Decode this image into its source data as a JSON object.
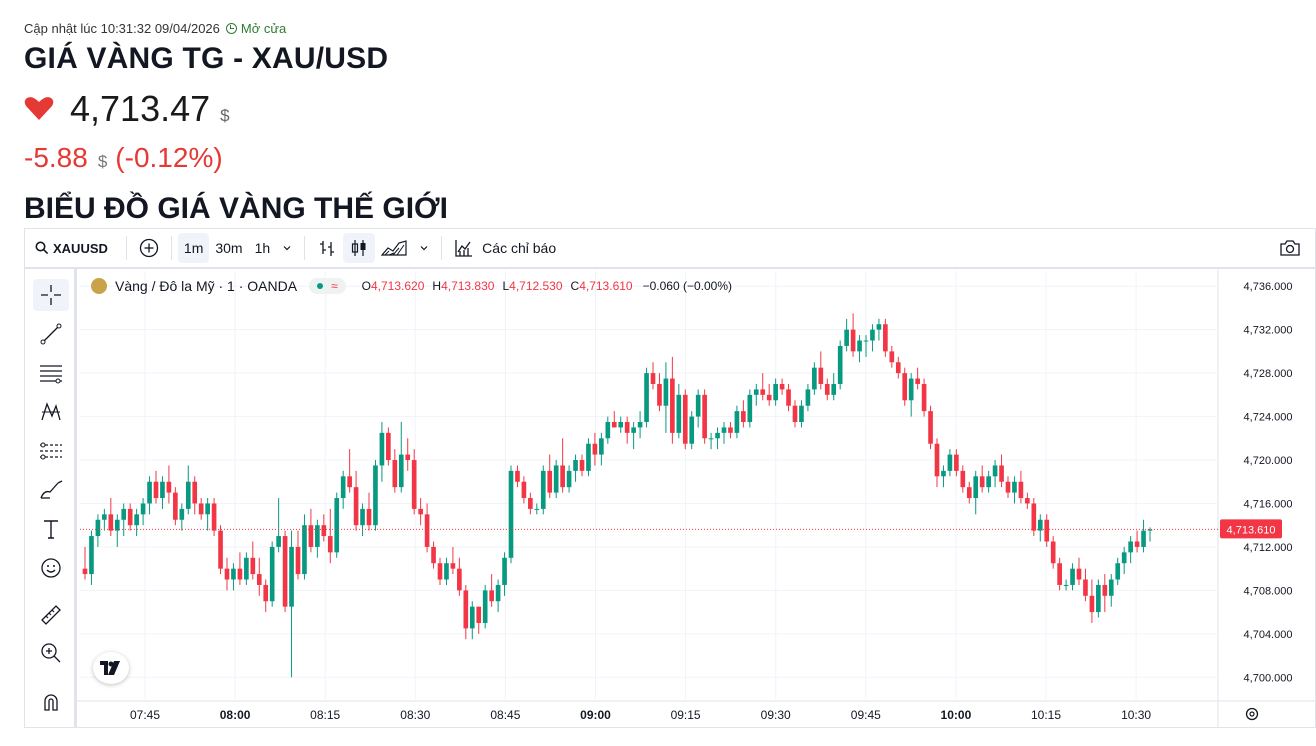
{
  "header": {
    "update_label": "Cập nhật lúc 10:31:32 09/04/2026",
    "market_status": "Mở cửa",
    "title": "GIÁ VÀNG TG - XAU/USD",
    "price": "4,713.47",
    "price_unit": "$",
    "change": "-5.88",
    "change_unit": "$",
    "change_pct": "(-0.12%)",
    "section_title": "BIỂU ĐỒ GIÁ VÀNG THẾ GIỚI",
    "down_color": "#e53935"
  },
  "toolbar": {
    "symbol": "XAUUSD",
    "intervals": [
      "1m",
      "30m",
      "1h"
    ],
    "active_interval": "1m",
    "indicators_label": "Các chỉ báo"
  },
  "legend": {
    "instrument": "Vàng / Đô la Mỹ · 1 · OANDA",
    "o_label": "O",
    "o_value": "4,713.620",
    "h_label": "H",
    "h_value": "4,713.830",
    "l_label": "L",
    "l_value": "4,712.530",
    "c_label": "C",
    "c_value": "4,713.610",
    "change": "−0.060 (−0.00%)"
  },
  "left_tools": [
    "crosshair-icon",
    "trend-line-icon",
    "fib-lines-icon",
    "pattern-icon",
    "prediction-icon",
    "brush-icon",
    "text-icon",
    "emoji-icon",
    "ruler-icon",
    "zoom-icon",
    "magnet-icon"
  ],
  "chart_data": {
    "type": "candlestick",
    "up_color": "#089981",
    "down_color": "#f23645",
    "ylim": [
      4698,
      4737.4
    ],
    "y_ticks": [
      "4,736.000",
      "4,732.000",
      "4,728.000",
      "4,724.000",
      "4,720.000",
      "4,716.000",
      "4,712.000",
      "4,708.000",
      "4,704.000",
      "4,700.000"
    ],
    "y_tick_values": [
      4736,
      4732,
      4728,
      4724,
      4720,
      4716,
      4712,
      4708,
      4704,
      4700
    ],
    "x_ticks": [
      "07:45",
      "08:00",
      "08:15",
      "08:30",
      "08:45",
      "09:00",
      "09:15",
      "09:30",
      "09:45",
      "10:00",
      "10:15",
      "10:30"
    ],
    "x_tick_bold": [
      false,
      true,
      false,
      false,
      false,
      true,
      false,
      false,
      false,
      true,
      false,
      false
    ],
    "last_price": "4,713.610",
    "last_price_value": 4713.61,
    "candles": [
      [
        4710.0,
        4712.0,
        4709.0,
        4709.5
      ],
      [
        4709.5,
        4713.5,
        4708.5,
        4713.0
      ],
      [
        4713.0,
        4715.0,
        4712.0,
        4714.5
      ],
      [
        4714.5,
        4715.5,
        4713.5,
        4715.0
      ],
      [
        4715.0,
        4716.5,
        4713.0,
        4713.5
      ],
      [
        4713.5,
        4715.0,
        4712.0,
        4714.5
      ],
      [
        4714.5,
        4716.0,
        4713.0,
        4715.5
      ],
      [
        4715.5,
        4716.0,
        4713.5,
        4714.0
      ],
      [
        4714.0,
        4715.5,
        4713.0,
        4715.0
      ],
      [
        4715.0,
        4716.5,
        4714.0,
        4716.0
      ],
      [
        4716.0,
        4718.5,
        4715.0,
        4718.0
      ],
      [
        4718.0,
        4719.0,
        4716.0,
        4716.5
      ],
      [
        4716.5,
        4718.5,
        4715.5,
        4718.0
      ],
      [
        4718.0,
        4719.5,
        4716.0,
        4717.0
      ],
      [
        4717.0,
        4717.5,
        4714.0,
        4714.5
      ],
      [
        4714.5,
        4716.0,
        4713.5,
        4715.5
      ],
      [
        4715.5,
        4719.5,
        4715.0,
        4718.0
      ],
      [
        4718.0,
        4718.5,
        4715.0,
        4716.0
      ],
      [
        4716.0,
        4716.5,
        4714.5,
        4715.0
      ],
      [
        4715.0,
        4716.5,
        4713.5,
        4716.0
      ],
      [
        4716.0,
        4716.5,
        4713.0,
        4713.5
      ],
      [
        4713.5,
        4714.0,
        4709.5,
        4710.0
      ],
      [
        4710.0,
        4711.0,
        4708.0,
        4709.0
      ],
      [
        4709.0,
        4710.5,
        4708.0,
        4710.0
      ],
      [
        4710.0,
        4711.5,
        4708.5,
        4709.0
      ],
      [
        4709.0,
        4711.5,
        4708.5,
        4711.0
      ],
      [
        4711.0,
        4712.5,
        4709.0,
        4709.5
      ],
      [
        4709.5,
        4711.0,
        4707.5,
        4708.5
      ],
      [
        4708.5,
        4709.0,
        4706.0,
        4707.0
      ],
      [
        4707.0,
        4712.5,
        4706.5,
        4712.0
      ],
      [
        4712.0,
        4716.5,
        4711.5,
        4713.0
      ],
      [
        4713.0,
        4713.5,
        4706.0,
        4706.5
      ],
      [
        4706.5,
        4713.5,
        4700.0,
        4712.0
      ],
      [
        4712.0,
        4713.5,
        4709.0,
        4709.5
      ],
      [
        4709.5,
        4715.0,
        4709.0,
        4714.0
      ],
      [
        4714.0,
        4715.5,
        4711.5,
        4712.0
      ],
      [
        4712.0,
        4714.5,
        4711.0,
        4714.0
      ],
      [
        4714.0,
        4715.0,
        4712.5,
        4713.0
      ],
      [
        4713.0,
        4715.5,
        4710.5,
        4711.5
      ],
      [
        4711.5,
        4717.0,
        4711.0,
        4716.5
      ],
      [
        4716.5,
        4719.0,
        4715.5,
        4718.5
      ],
      [
        4718.5,
        4721.0,
        4717.0,
        4717.5
      ],
      [
        4717.5,
        4719.0,
        4713.5,
        4714.0
      ],
      [
        4714.0,
        4716.0,
        4713.0,
        4715.5
      ],
      [
        4715.5,
        4717.0,
        4713.5,
        4714.0
      ],
      [
        4714.0,
        4720.0,
        4713.5,
        4719.5
      ],
      [
        4719.5,
        4723.5,
        4718.0,
        4722.5
      ],
      [
        4722.5,
        4723.0,
        4719.5,
        4720.0
      ],
      [
        4720.0,
        4721.0,
        4717.0,
        4717.5
      ],
      [
        4717.5,
        4723.5,
        4717.0,
        4720.5
      ],
      [
        4720.5,
        4722.0,
        4719.0,
        4720.0
      ],
      [
        4720.0,
        4721.0,
        4715.0,
        4715.5
      ],
      [
        4715.5,
        4716.5,
        4714.0,
        4715.0
      ],
      [
        4715.0,
        4716.0,
        4711.5,
        4712.0
      ],
      [
        4712.0,
        4712.5,
        4710.0,
        4710.5
      ],
      [
        4710.5,
        4711.0,
        4708.5,
        4709.0
      ],
      [
        4709.0,
        4711.0,
        4708.5,
        4710.5
      ],
      [
        4710.5,
        4712.0,
        4709.5,
        4710.0
      ],
      [
        4710.0,
        4711.0,
        4707.5,
        4708.0
      ],
      [
        4708.0,
        4708.5,
        4703.5,
        4704.5
      ],
      [
        4704.5,
        4707.0,
        4703.5,
        4706.5
      ],
      [
        4706.5,
        4706.5,
        4704.0,
        4705.0
      ],
      [
        4705.0,
        4708.5,
        4704.5,
        4708.0
      ],
      [
        4708.0,
        4709.5,
        4706.5,
        4707.0
      ],
      [
        4707.0,
        4709.0,
        4706.0,
        4708.5
      ],
      [
        4708.5,
        4711.5,
        4707.5,
        4711.0
      ],
      [
        4711.0,
        4719.5,
        4710.5,
        4719.0
      ],
      [
        4719.0,
        4719.5,
        4717.5,
        4718.0
      ],
      [
        4718.0,
        4718.5,
        4716.0,
        4716.5
      ],
      [
        4716.5,
        4717.0,
        4715.0,
        4715.5
      ],
      [
        4715.5,
        4716.0,
        4715.0,
        4715.5
      ],
      [
        4715.5,
        4719.5,
        4715.0,
        4719.0
      ],
      [
        4719.0,
        4720.5,
        4716.5,
        4717.0
      ],
      [
        4717.0,
        4720.0,
        4716.5,
        4719.5
      ],
      [
        4719.5,
        4722.0,
        4717.0,
        4717.5
      ],
      [
        4717.5,
        4719.5,
        4717.0,
        4719.0
      ],
      [
        4719.0,
        4720.5,
        4718.0,
        4720.0
      ],
      [
        4720.0,
        4720.5,
        4718.5,
        4719.0
      ],
      [
        4719.0,
        4722.0,
        4718.5,
        4721.5
      ],
      [
        4721.5,
        4722.5,
        4719.5,
        4720.5
      ],
      [
        4720.5,
        4722.5,
        4719.5,
        4722.0
      ],
      [
        4722.0,
        4724.0,
        4721.5,
        4723.5
      ],
      [
        4723.5,
        4724.5,
        4723.0,
        4723.0
      ],
      [
        4723.0,
        4724.0,
        4722.5,
        4723.5
      ],
      [
        4723.5,
        4724.0,
        4721.5,
        4722.5
      ],
      [
        4722.5,
        4723.5,
        4721.0,
        4723.0
      ],
      [
        4723.0,
        4724.5,
        4722.0,
        4723.5
      ],
      [
        4723.5,
        4728.5,
        4723.0,
        4728.0
      ],
      [
        4728.0,
        4729.0,
        4726.5,
        4727.0
      ],
      [
        4727.0,
        4728.0,
        4724.5,
        4725.0
      ],
      [
        4725.0,
        4729.0,
        4722.5,
        4727.5
      ],
      [
        4727.5,
        4729.5,
        4721.5,
        4722.5
      ],
      [
        4722.5,
        4727.0,
        4722.0,
        4726.0
      ],
      [
        4726.0,
        4726.5,
        4721.0,
        4721.5
      ],
      [
        4721.5,
        4724.5,
        4721.0,
        4724.0
      ],
      [
        4724.0,
        4726.5,
        4723.0,
        4726.0
      ],
      [
        4726.0,
        4726.5,
        4721.5,
        4722.0
      ],
      [
        4722.0,
        4722.5,
        4721.0,
        4722.0
      ],
      [
        4722.0,
        4723.0,
        4721.0,
        4722.5
      ],
      [
        4722.5,
        4723.5,
        4721.5,
        4723.0
      ],
      [
        4723.0,
        4723.5,
        4722.0,
        4722.5
      ],
      [
        4722.5,
        4725.0,
        4722.0,
        4724.5
      ],
      [
        4724.5,
        4725.5,
        4723.0,
        4723.5
      ],
      [
        4723.5,
        4726.5,
        4723.0,
        4726.0
      ],
      [
        4726.0,
        4727.0,
        4725.0,
        4726.5
      ],
      [
        4726.5,
        4728.0,
        4725.5,
        4726.0
      ],
      [
        4726.0,
        4727.0,
        4725.0,
        4725.5
      ],
      [
        4725.5,
        4727.5,
        4725.0,
        4727.0
      ],
      [
        4727.0,
        4727.5,
        4726.0,
        4726.5
      ],
      [
        4726.5,
        4727.0,
        4724.5,
        4725.0
      ],
      [
        4725.0,
        4725.5,
        4723.0,
        4723.5
      ],
      [
        4723.5,
        4725.5,
        4723.0,
        4725.0
      ],
      [
        4725.0,
        4727.0,
        4724.5,
        4726.5
      ],
      [
        4726.5,
        4729.0,
        4726.0,
        4728.5
      ],
      [
        4728.5,
        4730.0,
        4726.5,
        4727.0
      ],
      [
        4727.0,
        4727.5,
        4725.5,
        4726.0
      ],
      [
        4726.0,
        4728.0,
        4725.5,
        4727.0
      ],
      [
        4727.0,
        4731.0,
        4726.5,
        4730.5
      ],
      [
        4730.5,
        4733.0,
        4730.0,
        4732.0
      ],
      [
        4732.0,
        4733.5,
        4729.5,
        4730.0
      ],
      [
        4730.0,
        4731.5,
        4729.0,
        4731.0
      ],
      [
        4731.0,
        4731.5,
        4729.5,
        4731.0
      ],
      [
        4731.0,
        4732.5,
        4730.0,
        4732.0
      ],
      [
        4732.0,
        4733.0,
        4731.0,
        4732.5
      ],
      [
        4732.5,
        4733.0,
        4729.5,
        4730.0
      ],
      [
        4730.0,
        4730.5,
        4728.5,
        4729.0
      ],
      [
        4729.0,
        4729.5,
        4727.5,
        4728.0
      ],
      [
        4728.0,
        4728.5,
        4725.0,
        4725.5
      ],
      [
        4725.5,
        4728.0,
        4724.0,
        4727.5
      ],
      [
        4727.5,
        4728.5,
        4726.5,
        4727.0
      ],
      [
        4727.0,
        4727.5,
        4724.0,
        4724.5
      ],
      [
        4724.5,
        4725.0,
        4721.0,
        4721.5
      ],
      [
        4721.5,
        4722.0,
        4717.5,
        4718.5
      ],
      [
        4718.5,
        4719.5,
        4717.5,
        4719.0
      ],
      [
        4719.0,
        4721.0,
        4718.5,
        4720.5
      ],
      [
        4720.5,
        4721.0,
        4718.5,
        4719.0
      ],
      [
        4719.0,
        4719.5,
        4717.0,
        4717.5
      ],
      [
        4717.5,
        4718.0,
        4716.0,
        4716.5
      ],
      [
        4716.5,
        4719.0,
        4715.0,
        4718.5
      ],
      [
        4718.5,
        4719.5,
        4717.0,
        4717.5
      ],
      [
        4717.5,
        4719.0,
        4717.0,
        4718.5
      ],
      [
        4718.5,
        4720.0,
        4717.5,
        4719.5
      ],
      [
        4719.5,
        4720.5,
        4717.5,
        4718.0
      ],
      [
        4718.0,
        4718.5,
        4716.5,
        4717.0
      ],
      [
        4717.0,
        4718.5,
        4716.0,
        4718.0
      ],
      [
        4718.0,
        4719.0,
        4716.0,
        4716.5
      ],
      [
        4716.5,
        4717.0,
        4715.5,
        4716.0
      ],
      [
        4716.0,
        4716.5,
        4713.0,
        4713.5
      ],
      [
        4713.5,
        4715.0,
        4712.5,
        4714.5
      ],
      [
        4714.5,
        4715.0,
        4712.0,
        4712.5
      ],
      [
        4712.5,
        4713.0,
        4710.0,
        4710.5
      ],
      [
        4710.5,
        4711.0,
        4708.0,
        4708.5
      ],
      [
        4708.5,
        4709.0,
        4708.0,
        4708.5
      ],
      [
        4708.5,
        4710.5,
        4708.0,
        4710.0
      ],
      [
        4710.0,
        4711.0,
        4708.5,
        4709.0
      ],
      [
        4709.0,
        4710.0,
        4707.0,
        4707.5
      ],
      [
        4707.5,
        4709.0,
        4705.0,
        4706.0
      ],
      [
        4706.0,
        4709.0,
        4705.5,
        4708.5
      ],
      [
        4708.5,
        4709.5,
        4706.0,
        4707.5
      ],
      [
        4707.5,
        4709.5,
        4706.5,
        4709.0
      ],
      [
        4709.0,
        4711.0,
        4708.5,
        4710.5
      ],
      [
        4710.5,
        4712.0,
        4709.5,
        4711.5
      ],
      [
        4711.5,
        4713.0,
        4710.5,
        4712.5
      ],
      [
        4712.5,
        4713.5,
        4711.5,
        4712.0
      ],
      [
        4712.0,
        4714.5,
        4711.5,
        4713.5
      ],
      [
        4713.5,
        4713.8,
        4712.5,
        4713.61
      ]
    ]
  }
}
